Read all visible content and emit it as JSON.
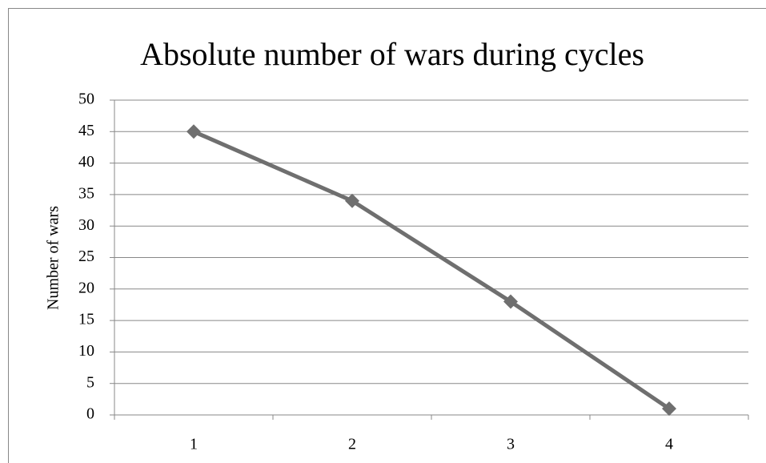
{
  "chart_data": {
    "type": "line",
    "title": "Absolute number of wars during cycles",
    "y_label": "Number of wars",
    "categories": [
      "1",
      "2",
      "3",
      "4"
    ],
    "series": [
      {
        "name": "Number of wars",
        "color": "#6f6f6f",
        "values": [
          45,
          34,
          18,
          1
        ]
      }
    ],
    "ylim": [
      0,
      50
    ],
    "yticks": [
      0,
      5,
      10,
      15,
      20,
      25,
      30,
      35,
      40,
      45,
      50
    ],
    "grid": true
  }
}
